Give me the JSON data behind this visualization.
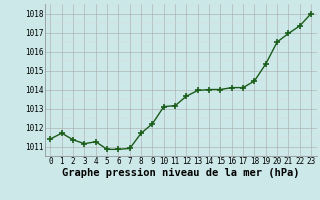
{
  "x": [
    0,
    1,
    2,
    3,
    4,
    5,
    6,
    7,
    8,
    9,
    10,
    11,
    12,
    13,
    14,
    15,
    16,
    17,
    18,
    19,
    20,
    21,
    22,
    23
  ],
  "y": [
    1011.4,
    1011.7,
    1011.35,
    1011.15,
    1011.25,
    1010.85,
    1010.85,
    1010.9,
    1011.7,
    1012.2,
    1013.1,
    1013.15,
    1013.65,
    1013.95,
    1014.0,
    1014.0,
    1014.1,
    1014.1,
    1014.45,
    1015.35,
    1016.5,
    1016.95,
    1017.35,
    1018.0
  ],
  "line_color": "#1a5c1a",
  "marker_color": "#1a5c1a",
  "bg_color": "#cce8e8",
  "grid_color_major": "#aaaaaa",
  "grid_color_minor": "#dddddd",
  "xlabel": "Graphe pression niveau de la mer (hPa)",
  "ylim": [
    1010.5,
    1018.5
  ],
  "yticks": [
    1011,
    1012,
    1013,
    1014,
    1015,
    1016,
    1017,
    1018
  ],
  "xlim": [
    -0.5,
    23.5
  ],
  "xticks": [
    0,
    1,
    2,
    3,
    4,
    5,
    6,
    7,
    8,
    9,
    10,
    11,
    12,
    13,
    14,
    15,
    16,
    17,
    18,
    19,
    20,
    21,
    22,
    23
  ],
  "xlabel_fontsize": 7.5,
  "tick_fontsize": 5.5,
  "line_width": 1.0,
  "marker_size": 4.0
}
